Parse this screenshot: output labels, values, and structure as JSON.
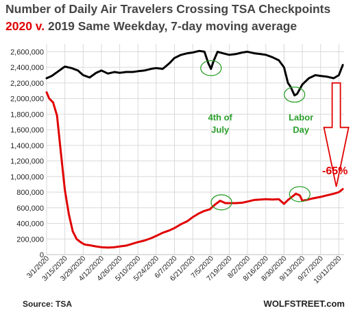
{
  "chart_data": {
    "type": "line",
    "title_line1": "Number of Daily Air Travelers Crossing TSA Checkpoints",
    "title_line2_red": "2020 v.",
    "title_line2_rest": "2019 Same Weekday, 7-day moving average",
    "ylim": [
      0,
      2700000
    ],
    "yticks": [
      0,
      200000,
      400000,
      600000,
      800000,
      1000000,
      1200000,
      1400000,
      1600000,
      1800000,
      2000000,
      2200000,
      2400000,
      2600000
    ],
    "ytick_labels": [
      "0",
      "200,000",
      "400,000",
      "600,000",
      "800,000",
      "1,000,000",
      "1,200,000",
      "1,400,000",
      "1,600,000",
      "1,800,000",
      "2,000,000",
      "2,200,000",
      "2,400,000",
      "2,600,000"
    ],
    "xlim": [
      "2020-03-01",
      "2020-10-15"
    ],
    "xticks": [
      "2020-03-01",
      "2020-03-15",
      "2020-03-29",
      "2020-04-12",
      "2020-04-26",
      "2020-05-10",
      "2020-05-24",
      "2020-06-07",
      "2020-06-21",
      "2020-07-05",
      "2020-07-19",
      "2020-08-02",
      "2020-08-16",
      "2020-08-30",
      "2020-09-13",
      "2020-09-27",
      "2020-10-11"
    ],
    "xtick_labels": [
      "3/1/2020",
      "3/15/2020",
      "3/29/2020",
      "4/12/2020",
      "4/26/2020",
      "5/10/2020",
      "5/24/2020",
      "6/7/2020",
      "6/21/2020",
      "7/5/2020",
      "7/19/2020",
      "8/2/2020",
      "8/16/2020",
      "8/30/2020",
      "9/13/2020",
      "9/27/2020",
      "10/11/2020"
    ],
    "grid": true,
    "series": [
      {
        "color": "#000000",
        "x": [
          "2020-03-01",
          "2020-03-05",
          "2020-03-10",
          "2020-03-15",
          "2020-03-20",
          "2020-03-25",
          "2020-03-29",
          "2020-04-03",
          "2020-04-08",
          "2020-04-12",
          "2020-04-17",
          "2020-04-22",
          "2020-04-26",
          "2020-05-01",
          "2020-05-06",
          "2020-05-10",
          "2020-05-15",
          "2020-05-20",
          "2020-05-24",
          "2020-05-29",
          "2020-06-03",
          "2020-06-07",
          "2020-06-12",
          "2020-06-17",
          "2020-06-21",
          "2020-06-26",
          "2020-06-30",
          "2020-07-03",
          "2020-07-05",
          "2020-07-07",
          "2020-07-10",
          "2020-07-14",
          "2020-07-19",
          "2020-07-24",
          "2020-07-29",
          "2020-08-02",
          "2020-08-07",
          "2020-08-12",
          "2020-08-16",
          "2020-08-21",
          "2020-08-26",
          "2020-08-30",
          "2020-09-02",
          "2020-09-04",
          "2020-09-07",
          "2020-09-09",
          "2020-09-13",
          "2020-09-18",
          "2020-09-23",
          "2020-09-27",
          "2020-10-02",
          "2020-10-07",
          "2020-10-11",
          "2020-10-14"
        ],
        "y": [
          2260000,
          2290000,
          2350000,
          2410000,
          2390000,
          2360000,
          2300000,
          2270000,
          2330000,
          2360000,
          2320000,
          2340000,
          2330000,
          2340000,
          2340000,
          2350000,
          2360000,
          2380000,
          2390000,
          2380000,
          2450000,
          2520000,
          2560000,
          2580000,
          2590000,
          2610000,
          2600000,
          2450000,
          2380000,
          2480000,
          2600000,
          2580000,
          2560000,
          2570000,
          2590000,
          2600000,
          2580000,
          2570000,
          2560000,
          2530000,
          2490000,
          2400000,
          2200000,
          2150000,
          2040000,
          2060000,
          2180000,
          2260000,
          2300000,
          2290000,
          2280000,
          2260000,
          2300000,
          2430000
        ]
      },
      {
        "color": "#e00000",
        "x": [
          "2020-03-01",
          "2020-03-03",
          "2020-03-06",
          "2020-03-09",
          "2020-03-12",
          "2020-03-15",
          "2020-03-18",
          "2020-03-21",
          "2020-03-24",
          "2020-03-27",
          "2020-03-30",
          "2020-04-03",
          "2020-04-08",
          "2020-04-12",
          "2020-04-17",
          "2020-04-22",
          "2020-04-26",
          "2020-05-01",
          "2020-05-06",
          "2020-05-10",
          "2020-05-15",
          "2020-05-20",
          "2020-05-24",
          "2020-05-29",
          "2020-06-03",
          "2020-06-07",
          "2020-06-12",
          "2020-06-17",
          "2020-06-21",
          "2020-06-26",
          "2020-06-30",
          "2020-07-04",
          "2020-07-08",
          "2020-07-12",
          "2020-07-16",
          "2020-07-19",
          "2020-07-24",
          "2020-07-29",
          "2020-08-02",
          "2020-08-07",
          "2020-08-12",
          "2020-08-16",
          "2020-08-21",
          "2020-08-26",
          "2020-08-30",
          "2020-09-02",
          "2020-09-05",
          "2020-09-08",
          "2020-09-11",
          "2020-09-13",
          "2020-09-16",
          "2020-09-21",
          "2020-09-27",
          "2020-10-02",
          "2020-10-07",
          "2020-10-11",
          "2020-10-14"
        ],
        "y": [
          2080000,
          2000000,
          1950000,
          1780000,
          1300000,
          830000,
          520000,
          300000,
          200000,
          160000,
          130000,
          120000,
          105000,
          95000,
          90000,
          95000,
          105000,
          115000,
          140000,
          160000,
          180000,
          210000,
          240000,
          280000,
          310000,
          340000,
          390000,
          430000,
          480000,
          530000,
          560000,
          580000,
          640000,
          690000,
          660000,
          660000,
          660000,
          665000,
          680000,
          700000,
          705000,
          710000,
          705000,
          710000,
          650000,
          700000,
          740000,
          780000,
          760000,
          690000,
          700000,
          720000,
          740000,
          760000,
          780000,
          800000,
          840000
        ]
      }
    ],
    "annotations": [
      {
        "text_lines": [
          "4th of",
          "July"
        ],
        "color": "#2aa02a"
      },
      {
        "text_lines": [
          "Labor",
          "Day"
        ],
        "color": "#2aa02a"
      },
      {
        "text_lines": [
          "-65%"
        ],
        "color": "#e00000"
      }
    ]
  },
  "footer": {
    "source": "Source: TSA",
    "brand": "WOLFSTREET.com"
  }
}
